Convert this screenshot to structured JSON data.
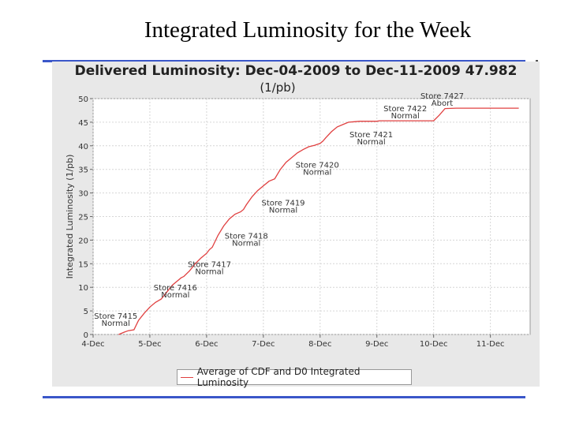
{
  "slide": {
    "title": "Integrated Luminosity for the Week"
  },
  "chart_data": {
    "type": "line",
    "title": "Delivered Luminosity:  Dec-04-2009 to Dec-11-2009 47.982",
    "subtitle": "(1/pb)",
    "xlabel": "",
    "ylabel": "Integrated Luminosity (1/pb)",
    "x_ticks": [
      "4-Dec",
      "5-Dec",
      "6-Dec",
      "7-Dec",
      "8-Dec",
      "9-Dec",
      "10-Dec",
      "11-Dec"
    ],
    "y_ticks": [
      0,
      5,
      10,
      15,
      20,
      25,
      30,
      35,
      40,
      45,
      50
    ],
    "xlim": [
      0,
      7.7
    ],
    "ylim": [
      0,
      50
    ],
    "grid": true,
    "series": [
      {
        "name": "Average of CDF and D0 Integrated Luminosity",
        "color": "#e04040",
        "x": [
          0.0,
          0.3,
          0.45,
          0.55,
          0.62,
          0.72,
          0.8,
          0.9,
          1.0,
          1.1,
          1.2,
          1.3,
          1.4,
          1.5,
          1.55,
          1.6,
          1.7,
          1.8,
          1.9,
          2.0,
          2.05,
          2.1,
          2.2,
          2.3,
          2.4,
          2.5,
          2.6,
          2.65,
          2.7,
          2.8,
          2.9,
          3.0,
          3.1,
          3.2,
          3.3,
          3.4,
          3.5,
          3.55,
          3.6,
          3.7,
          3.8,
          3.9,
          4.0,
          4.05,
          4.1,
          4.2,
          4.3,
          4.4,
          4.5,
          4.6,
          4.7,
          4.8,
          4.9,
          5.0,
          5.05,
          5.1,
          5.2,
          5.3,
          5.4,
          5.5,
          5.6,
          5.7,
          5.8,
          5.9,
          6.0,
          6.1,
          6.2,
          6.4,
          6.8,
          7.2,
          7.5
        ],
        "y": [
          null,
          null,
          0.0,
          0.5,
          0.8,
          1.0,
          3.0,
          4.5,
          5.8,
          6.8,
          7.5,
          9.0,
          10.5,
          11.5,
          12.0,
          12.3,
          13.5,
          15.0,
          16.2,
          17.2,
          18.0,
          18.5,
          21.0,
          23.0,
          24.5,
          25.5,
          26.0,
          26.5,
          27.5,
          29.2,
          30.5,
          31.5,
          32.5,
          33.0,
          35.0,
          36.5,
          37.5,
          38.0,
          38.5,
          39.2,
          39.8,
          40.1,
          40.5,
          41.0,
          41.7,
          43.0,
          44.0,
          44.5,
          45.0,
          45.1,
          45.2,
          45.2,
          45.2,
          45.2,
          45.3,
          45.3,
          45.3,
          45.3,
          45.3,
          45.3,
          45.3,
          45.3,
          45.3,
          45.3,
          45.3,
          46.5,
          47.9,
          47.98,
          47.98,
          47.98,
          47.98
        ]
      }
    ],
    "annotations": [
      {
        "x": 0.4,
        "y": 2.5,
        "store": "Store 7415",
        "status": "Normal"
      },
      {
        "x": 1.45,
        "y": 8.5,
        "store": "Store 7416",
        "status": "Normal"
      },
      {
        "x": 2.05,
        "y": 13.5,
        "store": "Store 7417",
        "status": "Normal"
      },
      {
        "x": 2.7,
        "y": 19.5,
        "store": "Store 7418",
        "status": "Normal"
      },
      {
        "x": 3.35,
        "y": 26.5,
        "store": "Store 7419",
        "status": "Normal"
      },
      {
        "x": 3.95,
        "y": 34.5,
        "store": "Store 7420",
        "status": "Normal"
      },
      {
        "x": 4.9,
        "y": 41.0,
        "store": "Store 7421",
        "status": "Normal"
      },
      {
        "x": 5.5,
        "y": 46.5,
        "store": "Store 7422",
        "status": "Normal"
      },
      {
        "x": 6.15,
        "y": 49.2,
        "store": "Store 7427",
        "status": "Abort"
      }
    ]
  }
}
